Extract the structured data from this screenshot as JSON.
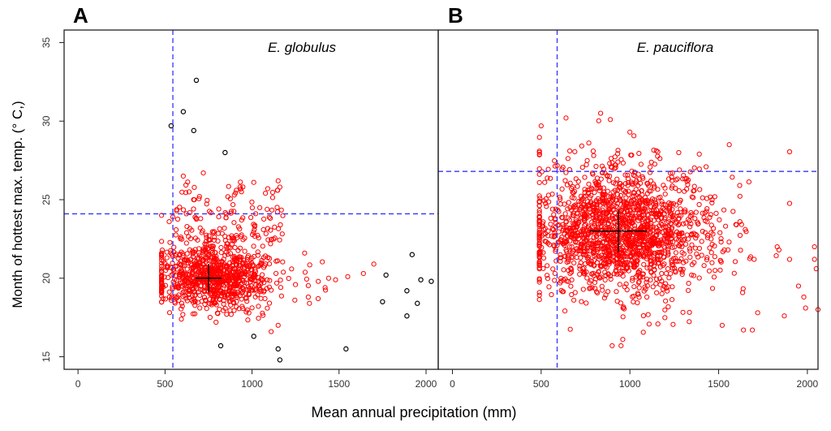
{
  "figure": {
    "ylabel": "Month of hottest max. temp.  (° C,)",
    "xlabel": "Mean annual precipitation (mm)"
  },
  "chart_data": [
    {
      "type": "scatter",
      "panel_label": "A",
      "title": "E. globulus",
      "xlim": [
        -80,
        2070
      ],
      "ylim": [
        14.2,
        35.8
      ],
      "xticks": [
        0,
        500,
        1000,
        1500,
        2000
      ],
      "yticks": [
        15,
        20,
        25,
        30,
        35
      ],
      "ytick_labels": [
        "15",
        "20",
        "25",
        "30",
        "35"
      ],
      "xtick_labels": [
        "0",
        "500",
        "1000",
        "1500",
        "2000"
      ],
      "threshold_x": 545,
      "threshold_y": 24.1,
      "center": {
        "x": 750,
        "y": 20.0,
        "sx": 75,
        "sy": 0.9
      },
      "cloud": {
        "n": 900,
        "seed": 11,
        "mx": 790,
        "sdx": 175,
        "my": 20.1,
        "sdy": 1.05,
        "xmin": 480,
        "xmax": 1450,
        "ymin": 16.8,
        "ymax": 23.6,
        "tail_n": 130,
        "tail_ymin": 22.4,
        "tail_ymax": 26.2,
        "tail_xmin": 520,
        "tail_xmax": 1180
      },
      "colors": {
        "inside": "#ff0000",
        "outside": "#000000",
        "threshold": "#3333ff",
        "cross": "#000000"
      },
      "red_points": [
        {
          "x": 480,
          "y": 24.0
        },
        {
          "x": 1700,
          "y": 20.9
        },
        {
          "x": 1640,
          "y": 20.3
        },
        {
          "x": 1550,
          "y": 20.1
        },
        {
          "x": 1480,
          "y": 19.9
        },
        {
          "x": 1440,
          "y": 20.0
        },
        {
          "x": 1420,
          "y": 19.4
        },
        {
          "x": 1380,
          "y": 18.7
        },
        {
          "x": 1330,
          "y": 18.4
        },
        {
          "x": 1150,
          "y": 26.2
        },
        {
          "x": 1160,
          "y": 25.8
        },
        {
          "x": 1090,
          "y": 25.7
        },
        {
          "x": 720,
          "y": 26.7
        },
        {
          "x": 605,
          "y": 26.5
        },
        {
          "x": 910,
          "y": 25.6
        },
        {
          "x": 1010,
          "y": 26.1
        },
        {
          "x": 1150,
          "y": 17.0
        },
        {
          "x": 1110,
          "y": 16.6
        }
      ],
      "black_points": [
        {
          "x": 680,
          "y": 32.6
        },
        {
          "x": 605,
          "y": 30.6
        },
        {
          "x": 535,
          "y": 29.7
        },
        {
          "x": 665,
          "y": 29.4
        },
        {
          "x": 845,
          "y": 28.0
        },
        {
          "x": 1920,
          "y": 21.5
        },
        {
          "x": 1770,
          "y": 20.2
        },
        {
          "x": 1970,
          "y": 19.9
        },
        {
          "x": 2030,
          "y": 19.8
        },
        {
          "x": 1890,
          "y": 19.2
        },
        {
          "x": 1750,
          "y": 18.5
        },
        {
          "x": 1950,
          "y": 18.4
        },
        {
          "x": 1890,
          "y": 17.6
        },
        {
          "x": 820,
          "y": 15.7
        },
        {
          "x": 1150,
          "y": 15.5
        },
        {
          "x": 1540,
          "y": 15.5
        },
        {
          "x": 1160,
          "y": 14.8
        },
        {
          "x": 1010,
          "y": 16.3
        }
      ]
    },
    {
      "type": "scatter",
      "panel_label": "B",
      "title": "E. pauciflora",
      "xlim": [
        -80,
        2060
      ],
      "ylim": [
        14.2,
        35.8
      ],
      "xticks": [
        0,
        500,
        1000,
        1500,
        2000
      ],
      "xtick_labels": [
        "0",
        "500",
        "1000",
        "1500",
        "2000"
      ],
      "threshold_x": 590,
      "threshold_y": 26.8,
      "center": {
        "x": 935,
        "y": 23.0,
        "sx": 160,
        "sy": 1.35
      },
      "cloud": {
        "n": 1700,
        "seed": 23,
        "mx": 950,
        "sdx": 250,
        "my": 22.9,
        "sdy": 2.0,
        "xmin": 490,
        "xmax": 1900,
        "ymin": 15.8,
        "ymax": 30.6,
        "tail_n": 0,
        "tail_ymin": 0,
        "tail_ymax": 0,
        "tail_xmin": 0,
        "tail_xmax": 0
      },
      "colors": {
        "inside": "#ff0000",
        "outside": "#000000",
        "threshold": "#3333ff",
        "cross": "#000000"
      },
      "red_points": [
        {
          "x": 500,
          "y": 29.7
        },
        {
          "x": 640,
          "y": 30.2
        },
        {
          "x": 835,
          "y": 30.5
        },
        {
          "x": 890,
          "y": 30.1
        },
        {
          "x": 1000,
          "y": 29.3
        },
        {
          "x": 1560,
          "y": 28.5
        },
        {
          "x": 1620,
          "y": 23.6
        },
        {
          "x": 1600,
          "y": 23.4
        },
        {
          "x": 1650,
          "y": 23.1
        },
        {
          "x": 1700,
          "y": 21.2
        },
        {
          "x": 1830,
          "y": 22.0
        },
        {
          "x": 1840,
          "y": 21.8
        },
        {
          "x": 1900,
          "y": 21.2
        },
        {
          "x": 1950,
          "y": 19.5
        },
        {
          "x": 2040,
          "y": 22.0
        },
        {
          "x": 2040,
          "y": 21.2
        },
        {
          "x": 2050,
          "y": 20.6
        },
        {
          "x": 2060,
          "y": 18.0
        },
        {
          "x": 1980,
          "y": 18.8
        },
        {
          "x": 1990,
          "y": 18.1
        },
        {
          "x": 1870,
          "y": 17.6
        },
        {
          "x": 1720,
          "y": 17.8
        },
        {
          "x": 1690,
          "y": 16.7
        },
        {
          "x": 1640,
          "y": 16.7
        },
        {
          "x": 1520,
          "y": 17.0
        },
        {
          "x": 950,
          "y": 15.7
        },
        {
          "x": 900,
          "y": 15.7
        },
        {
          "x": 960,
          "y": 16.1
        },
        {
          "x": 520,
          "y": 26.1
        },
        {
          "x": 505,
          "y": 22.7
        }
      ],
      "black_points": []
    }
  ]
}
